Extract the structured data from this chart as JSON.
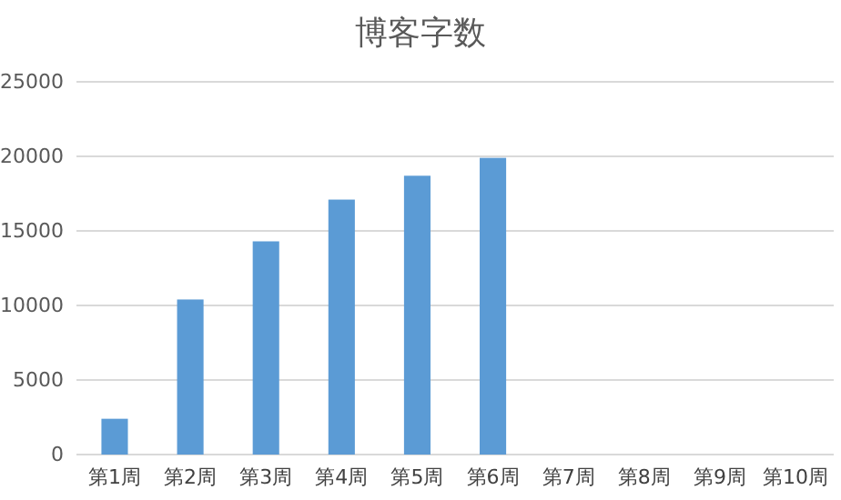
{
  "chart_data": {
    "type": "bar",
    "title": "博客字数",
    "categories": [
      "第1周",
      "第2周",
      "第3周",
      "第4周",
      "第5周",
      "第6周",
      "第7周",
      "第8周",
      "第9周",
      "第10周"
    ],
    "values": [
      2400,
      10400,
      14300,
      17100,
      18700,
      19900,
      null,
      null,
      null,
      null
    ],
    "color": "#5b9bd5",
    "ylim": [
      0,
      25000
    ],
    "yticks": [
      0,
      5000,
      10000,
      15000,
      20000,
      25000
    ],
    "grid": "y"
  }
}
